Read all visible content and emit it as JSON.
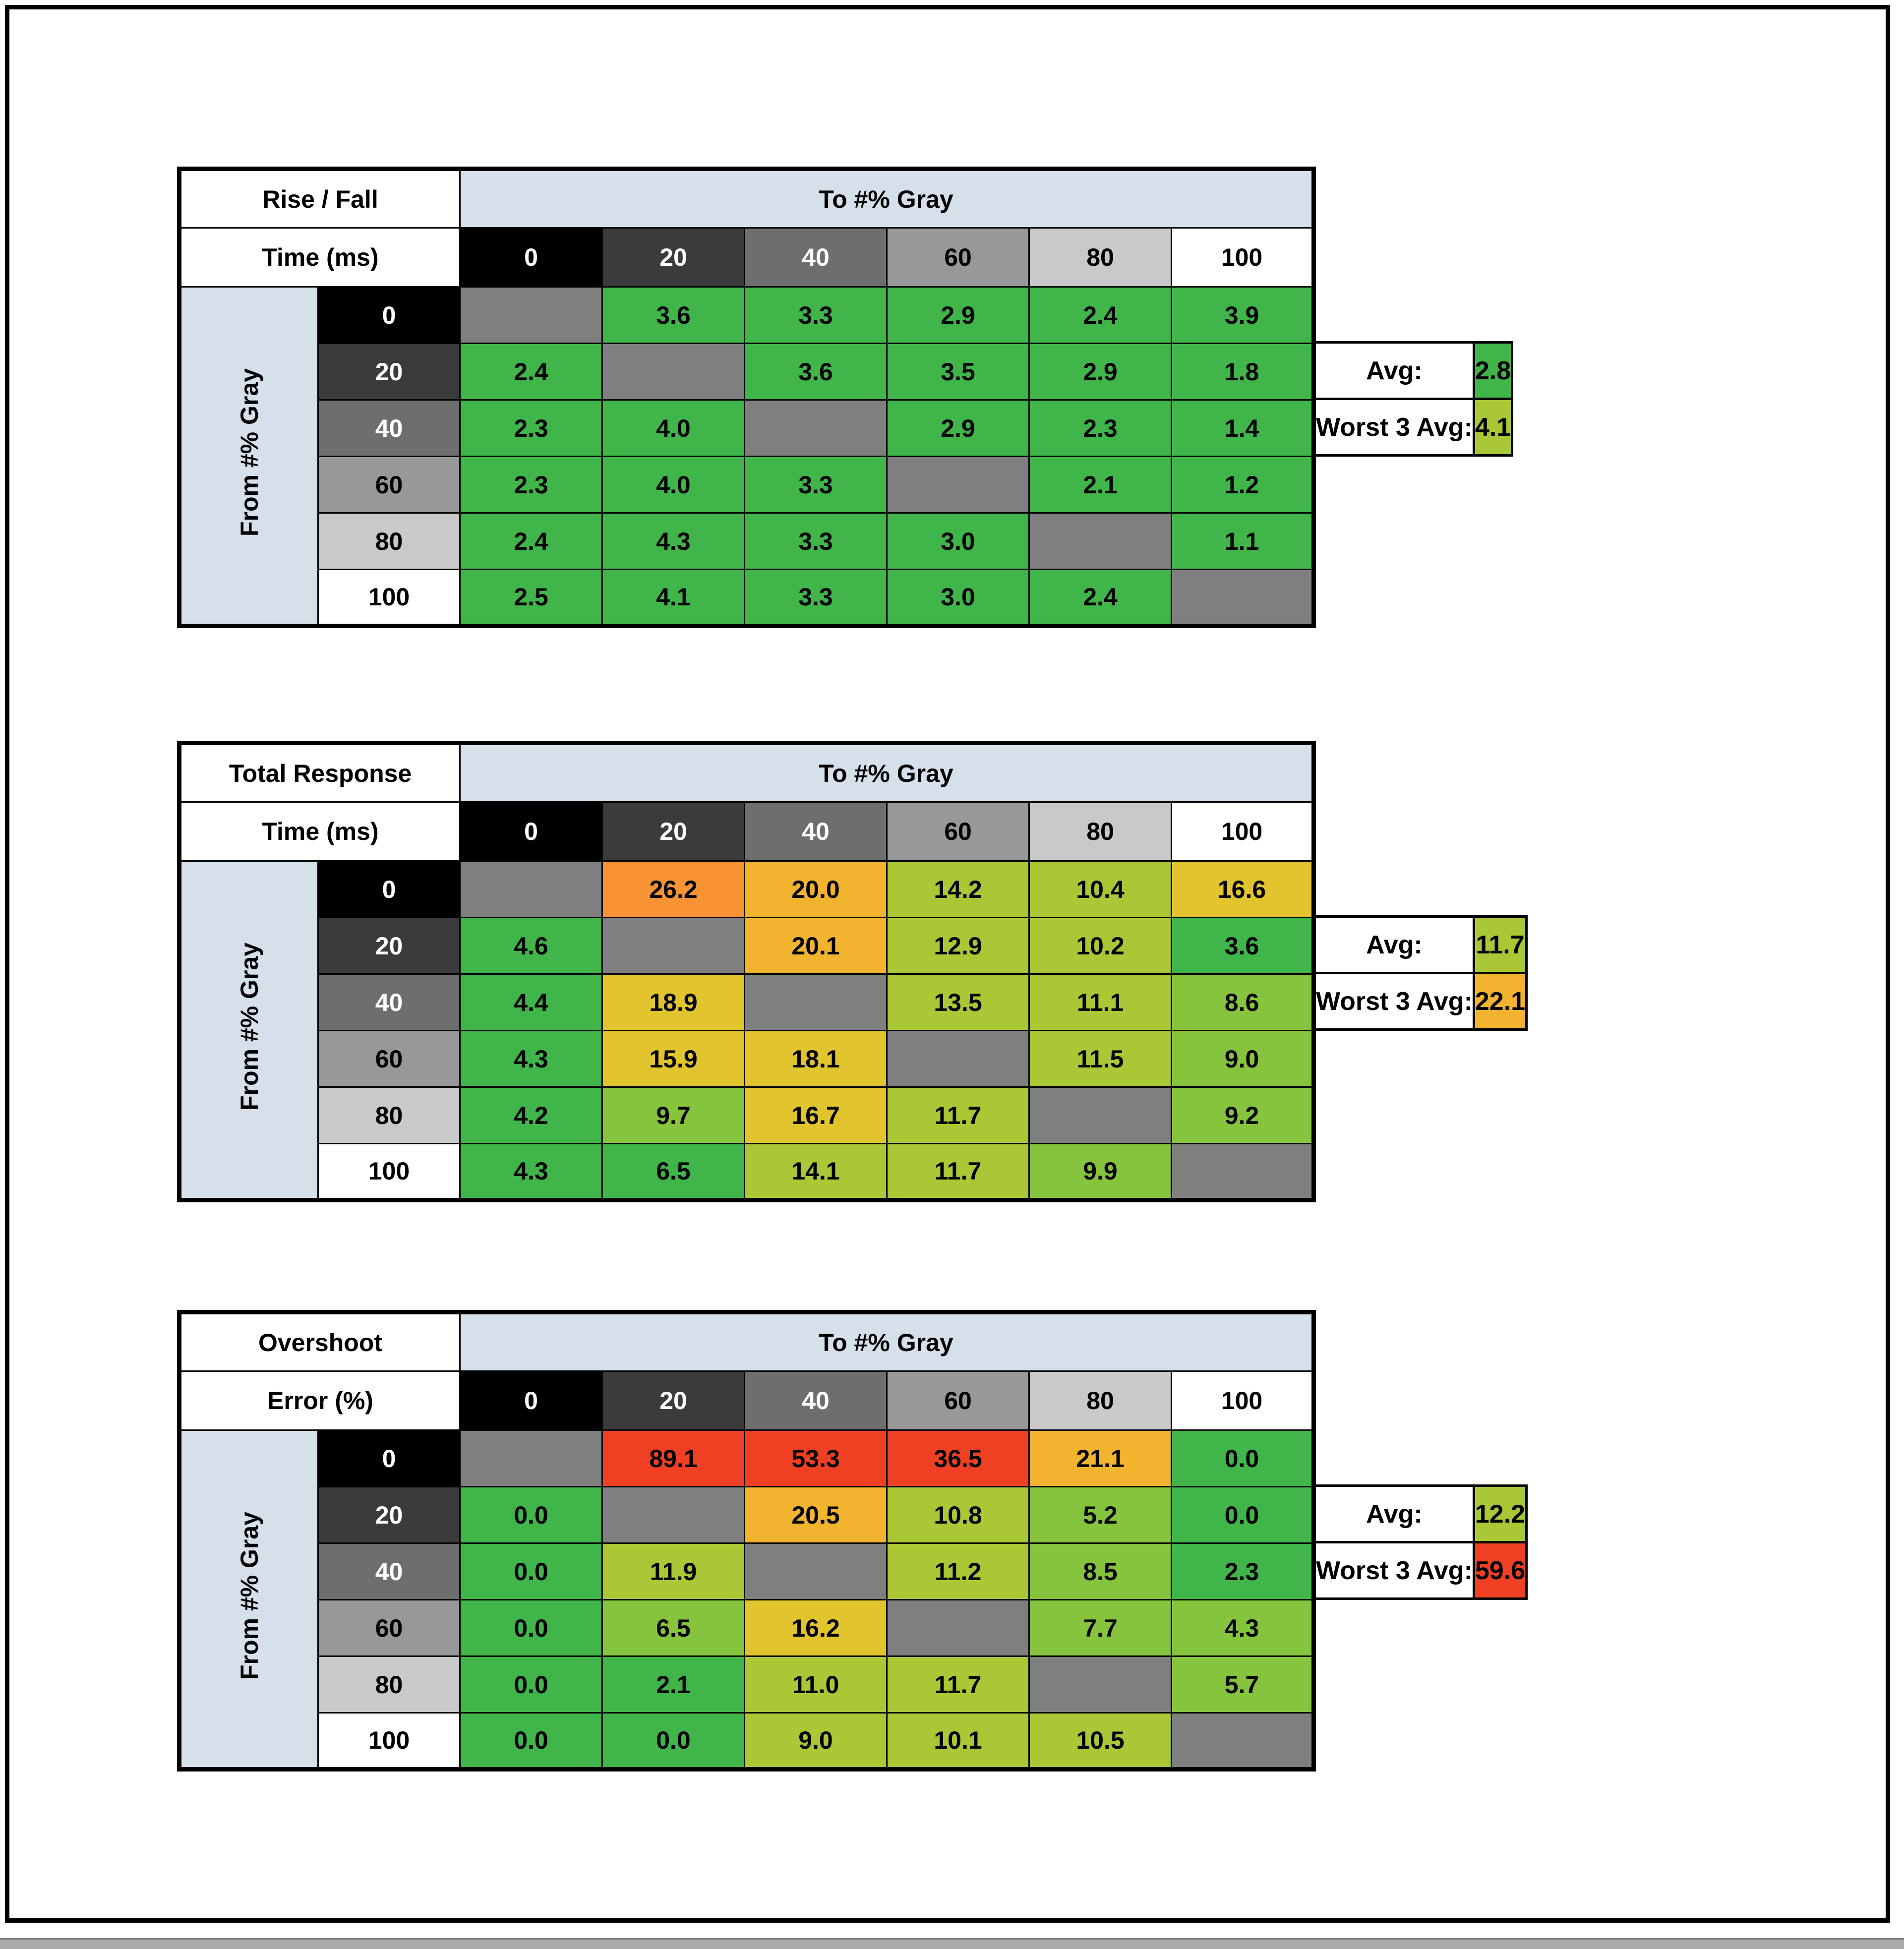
{
  "page": {
    "background": "#ffffff",
    "frame_color": "#000000",
    "bottom_bar_color": "#ababab"
  },
  "palette": {
    "green": "#3fb54a",
    "limegreen": "#86c43d",
    "yellowgreen": "#aac836",
    "yellow": "#e2c52e",
    "gold": "#f2b42e",
    "orange": "#f79332",
    "red": "#ef4023",
    "diag": "#7f7f7f",
    "header_blue": "#d6e0ea"
  },
  "gray_levels": [
    {
      "label": "0",
      "bg": "#000000",
      "fg": "#ffffff"
    },
    {
      "label": "20",
      "bg": "#3b3b3b",
      "fg": "#ffffff"
    },
    {
      "label": "40",
      "bg": "#6e6e6e",
      "fg": "#ffffff"
    },
    {
      "label": "60",
      "bg": "#989898",
      "fg": "#000000"
    },
    {
      "label": "80",
      "bg": "#c9c9c9",
      "fg": "#000000"
    },
    {
      "label": "100",
      "bg": "#ffffff",
      "fg": "#000000"
    }
  ],
  "tables": [
    {
      "title_lines": [
        "Rise / Fall",
        "Time (ms)"
      ],
      "col_group": "To #% Gray",
      "row_group": "From #% Gray",
      "rows": [
        [
          {
            "v": "",
            "c": "diag"
          },
          {
            "v": "3.6",
            "c": "green"
          },
          {
            "v": "3.3",
            "c": "green"
          },
          {
            "v": "2.9",
            "c": "green"
          },
          {
            "v": "2.4",
            "c": "green"
          },
          {
            "v": "3.9",
            "c": "green"
          }
        ],
        [
          {
            "v": "2.4",
            "c": "green"
          },
          {
            "v": "",
            "c": "diag"
          },
          {
            "v": "3.6",
            "c": "green"
          },
          {
            "v": "3.5",
            "c": "green"
          },
          {
            "v": "2.9",
            "c": "green"
          },
          {
            "v": "1.8",
            "c": "green"
          }
        ],
        [
          {
            "v": "2.3",
            "c": "green"
          },
          {
            "v": "4.0",
            "c": "green"
          },
          {
            "v": "",
            "c": "diag"
          },
          {
            "v": "2.9",
            "c": "green"
          },
          {
            "v": "2.3",
            "c": "green"
          },
          {
            "v": "1.4",
            "c": "green"
          }
        ],
        [
          {
            "v": "2.3",
            "c": "green"
          },
          {
            "v": "4.0",
            "c": "green"
          },
          {
            "v": "3.3",
            "c": "green"
          },
          {
            "v": "",
            "c": "diag"
          },
          {
            "v": "2.1",
            "c": "green"
          },
          {
            "v": "1.2",
            "c": "green"
          }
        ],
        [
          {
            "v": "2.4",
            "c": "green"
          },
          {
            "v": "4.3",
            "c": "green"
          },
          {
            "v": "3.3",
            "c": "green"
          },
          {
            "v": "3.0",
            "c": "green"
          },
          {
            "v": "",
            "c": "diag"
          },
          {
            "v": "1.1",
            "c": "green"
          }
        ],
        [
          {
            "v": "2.5",
            "c": "green"
          },
          {
            "v": "4.1",
            "c": "green"
          },
          {
            "v": "3.3",
            "c": "green"
          },
          {
            "v": "3.0",
            "c": "green"
          },
          {
            "v": "2.4",
            "c": "green"
          },
          {
            "v": "",
            "c": "diag"
          }
        ]
      ],
      "summary": {
        "avg_label": "Avg:",
        "avg": {
          "v": "2.8",
          "c": "green"
        },
        "worst_label": "Worst 3 Avg:",
        "worst": {
          "v": "4.1",
          "c": "yellowgreen"
        }
      }
    },
    {
      "title_lines": [
        "Total Response",
        "Time (ms)"
      ],
      "col_group": "To #% Gray",
      "row_group": "From #% Gray",
      "rows": [
        [
          {
            "v": "",
            "c": "diag"
          },
          {
            "v": "26.2",
            "c": "orange"
          },
          {
            "v": "20.0",
            "c": "gold"
          },
          {
            "v": "14.2",
            "c": "yellowgreen"
          },
          {
            "v": "10.4",
            "c": "yellowgreen"
          },
          {
            "v": "16.6",
            "c": "yellow"
          }
        ],
        [
          {
            "v": "4.6",
            "c": "green"
          },
          {
            "v": "",
            "c": "diag"
          },
          {
            "v": "20.1",
            "c": "gold"
          },
          {
            "v": "12.9",
            "c": "yellowgreen"
          },
          {
            "v": "10.2",
            "c": "yellowgreen"
          },
          {
            "v": "3.6",
            "c": "green"
          }
        ],
        [
          {
            "v": "4.4",
            "c": "green"
          },
          {
            "v": "18.9",
            "c": "yellow"
          },
          {
            "v": "",
            "c": "diag"
          },
          {
            "v": "13.5",
            "c": "yellowgreen"
          },
          {
            "v": "11.1",
            "c": "yellowgreen"
          },
          {
            "v": "8.6",
            "c": "limegreen"
          }
        ],
        [
          {
            "v": "4.3",
            "c": "green"
          },
          {
            "v": "15.9",
            "c": "yellow"
          },
          {
            "v": "18.1",
            "c": "yellow"
          },
          {
            "v": "",
            "c": "diag"
          },
          {
            "v": "11.5",
            "c": "yellowgreen"
          },
          {
            "v": "9.0",
            "c": "limegreen"
          }
        ],
        [
          {
            "v": "4.2",
            "c": "green"
          },
          {
            "v": "9.7",
            "c": "limegreen"
          },
          {
            "v": "16.7",
            "c": "yellow"
          },
          {
            "v": "11.7",
            "c": "yellowgreen"
          },
          {
            "v": "",
            "c": "diag"
          },
          {
            "v": "9.2",
            "c": "limegreen"
          }
        ],
        [
          {
            "v": "4.3",
            "c": "green"
          },
          {
            "v": "6.5",
            "c": "green"
          },
          {
            "v": "14.1",
            "c": "yellowgreen"
          },
          {
            "v": "11.7",
            "c": "yellowgreen"
          },
          {
            "v": "9.9",
            "c": "limegreen"
          },
          {
            "v": "",
            "c": "diag"
          }
        ]
      ],
      "summary": {
        "avg_label": "Avg:",
        "avg": {
          "v": "11.7",
          "c": "yellowgreen"
        },
        "worst_label": "Worst 3 Avg:",
        "worst": {
          "v": "22.1",
          "c": "gold"
        }
      }
    },
    {
      "title_lines": [
        "Overshoot",
        "Error (%)"
      ],
      "col_group": "To #% Gray",
      "row_group": "From #% Gray",
      "rows": [
        [
          {
            "v": "",
            "c": "diag"
          },
          {
            "v": "89.1",
            "c": "red"
          },
          {
            "v": "53.3",
            "c": "red"
          },
          {
            "v": "36.5",
            "c": "red"
          },
          {
            "v": "21.1",
            "c": "gold"
          },
          {
            "v": "0.0",
            "c": "green"
          }
        ],
        [
          {
            "v": "0.0",
            "c": "green"
          },
          {
            "v": "",
            "c": "diag"
          },
          {
            "v": "20.5",
            "c": "gold"
          },
          {
            "v": "10.8",
            "c": "yellowgreen"
          },
          {
            "v": "5.2",
            "c": "limegreen"
          },
          {
            "v": "0.0",
            "c": "green"
          }
        ],
        [
          {
            "v": "0.0",
            "c": "green"
          },
          {
            "v": "11.9",
            "c": "yellowgreen"
          },
          {
            "v": "",
            "c": "diag"
          },
          {
            "v": "11.2",
            "c": "yellowgreen"
          },
          {
            "v": "8.5",
            "c": "limegreen"
          },
          {
            "v": "2.3",
            "c": "green"
          }
        ],
        [
          {
            "v": "0.0",
            "c": "green"
          },
          {
            "v": "6.5",
            "c": "limegreen"
          },
          {
            "v": "16.2",
            "c": "yellow"
          },
          {
            "v": "",
            "c": "diag"
          },
          {
            "v": "7.7",
            "c": "limegreen"
          },
          {
            "v": "4.3",
            "c": "limegreen"
          }
        ],
        [
          {
            "v": "0.0",
            "c": "green"
          },
          {
            "v": "2.1",
            "c": "green"
          },
          {
            "v": "11.0",
            "c": "yellowgreen"
          },
          {
            "v": "11.7",
            "c": "yellowgreen"
          },
          {
            "v": "",
            "c": "diag"
          },
          {
            "v": "5.7",
            "c": "limegreen"
          }
        ],
        [
          {
            "v": "0.0",
            "c": "green"
          },
          {
            "v": "0.0",
            "c": "green"
          },
          {
            "v": "9.0",
            "c": "yellowgreen"
          },
          {
            "v": "10.1",
            "c": "yellowgreen"
          },
          {
            "v": "10.5",
            "c": "yellowgreen"
          },
          {
            "v": "",
            "c": "diag"
          }
        ]
      ],
      "summary": {
        "avg_label": "Avg:",
        "avg": {
          "v": "12.2",
          "c": "yellowgreen"
        },
        "worst_label": "Worst 3 Avg:",
        "worst": {
          "v": "59.6",
          "c": "red"
        }
      }
    }
  ],
  "chart_data": [
    {
      "type": "heatmap",
      "title": "Rise / Fall Time (ms)",
      "xlabel": "To #% Gray",
      "ylabel": "From #% Gray",
      "x_ticks": [
        0,
        20,
        40,
        60,
        80,
        100
      ],
      "y_ticks": [
        0,
        20,
        40,
        60,
        80,
        100
      ],
      "values": [
        [
          null,
          3.6,
          3.3,
          2.9,
          2.4,
          3.9
        ],
        [
          2.4,
          null,
          3.6,
          3.5,
          2.9,
          1.8
        ],
        [
          2.3,
          4.0,
          null,
          2.9,
          2.3,
          1.4
        ],
        [
          2.3,
          4.0,
          3.3,
          null,
          2.1,
          1.2
        ],
        [
          2.4,
          4.3,
          3.3,
          3.0,
          null,
          1.1
        ],
        [
          2.5,
          4.1,
          3.3,
          3.0,
          2.4,
          null
        ]
      ],
      "avg": 2.8,
      "worst_3_avg": 4.1
    },
    {
      "type": "heatmap",
      "title": "Total Response Time (ms)",
      "xlabel": "To #% Gray",
      "ylabel": "From #% Gray",
      "x_ticks": [
        0,
        20,
        40,
        60,
        80,
        100
      ],
      "y_ticks": [
        0,
        20,
        40,
        60,
        80,
        100
      ],
      "values": [
        [
          null,
          26.2,
          20.0,
          14.2,
          10.4,
          16.6
        ],
        [
          4.6,
          null,
          20.1,
          12.9,
          10.2,
          3.6
        ],
        [
          4.4,
          18.9,
          null,
          13.5,
          11.1,
          8.6
        ],
        [
          4.3,
          15.9,
          18.1,
          null,
          11.5,
          9.0
        ],
        [
          4.2,
          9.7,
          16.7,
          11.7,
          null,
          9.2
        ],
        [
          4.3,
          6.5,
          14.1,
          11.7,
          9.9,
          null
        ]
      ],
      "avg": 11.7,
      "worst_3_avg": 22.1
    },
    {
      "type": "heatmap",
      "title": "Overshoot Error (%)",
      "xlabel": "To #% Gray",
      "ylabel": "From #% Gray",
      "x_ticks": [
        0,
        20,
        40,
        60,
        80,
        100
      ],
      "y_ticks": [
        0,
        20,
        40,
        60,
        80,
        100
      ],
      "values": [
        [
          null,
          89.1,
          53.3,
          36.5,
          21.1,
          0.0
        ],
        [
          0.0,
          null,
          20.5,
          10.8,
          5.2,
          0.0
        ],
        [
          0.0,
          11.9,
          null,
          11.2,
          8.5,
          2.3
        ],
        [
          0.0,
          6.5,
          16.2,
          null,
          7.7,
          4.3
        ],
        [
          0.0,
          2.1,
          11.0,
          11.7,
          null,
          5.7
        ],
        [
          0.0,
          0.0,
          9.0,
          10.1,
          10.5,
          null
        ]
      ],
      "avg": 12.2,
      "worst_3_avg": 59.6
    }
  ]
}
